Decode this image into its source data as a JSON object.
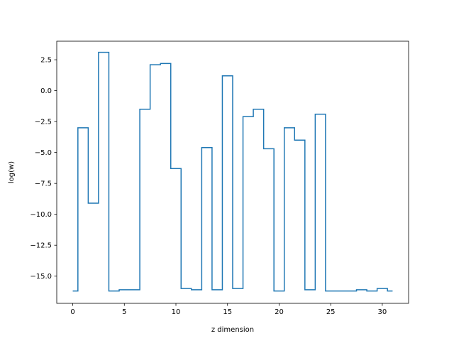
{
  "chart_data": {
    "type": "line",
    "drawstyle": "steps-mid",
    "title": "",
    "xlabel": "z dimension",
    "ylabel": "log(w)",
    "xlim": [
      -1.55,
      32.55
    ],
    "ylim": [
      -17.2,
      4.0
    ],
    "xticks": [
      0,
      5,
      10,
      15,
      20,
      25,
      30
    ],
    "xtick_labels": [
      "0",
      "5",
      "10",
      "15",
      "20",
      "25",
      "30"
    ],
    "yticks": [
      2.5,
      0.0,
      -2.5,
      -5.0,
      -7.5,
      -10.0,
      -12.5,
      -15.0
    ],
    "ytick_labels": [
      "2.5",
      "0.0",
      "−2.5",
      "−5.0",
      "−7.5",
      "−10.0",
      "−12.5",
      "−15.0"
    ],
    "grid": false,
    "series": [
      {
        "color": "#1f77b4",
        "x": [
          0,
          1,
          2,
          3,
          4,
          5,
          6,
          7,
          8,
          9,
          10,
          11,
          12,
          13,
          14,
          15,
          16,
          17,
          18,
          19,
          20,
          21,
          22,
          23,
          24,
          25,
          26,
          27,
          28,
          29,
          30,
          31
        ],
        "values": [
          -16.2,
          -3.0,
          -9.1,
          3.1,
          -16.2,
          -16.1,
          -16.1,
          -1.5,
          2.1,
          2.2,
          -6.3,
          -16.0,
          -16.1,
          -4.6,
          -16.1,
          1.2,
          -16.0,
          -2.1,
          -1.5,
          -4.7,
          -16.2,
          -3.0,
          -4.0,
          -16.1,
          -1.9,
          -16.2,
          -16.2,
          -16.2,
          -16.1,
          -16.2,
          -16.0,
          -16.2
        ]
      }
    ]
  }
}
